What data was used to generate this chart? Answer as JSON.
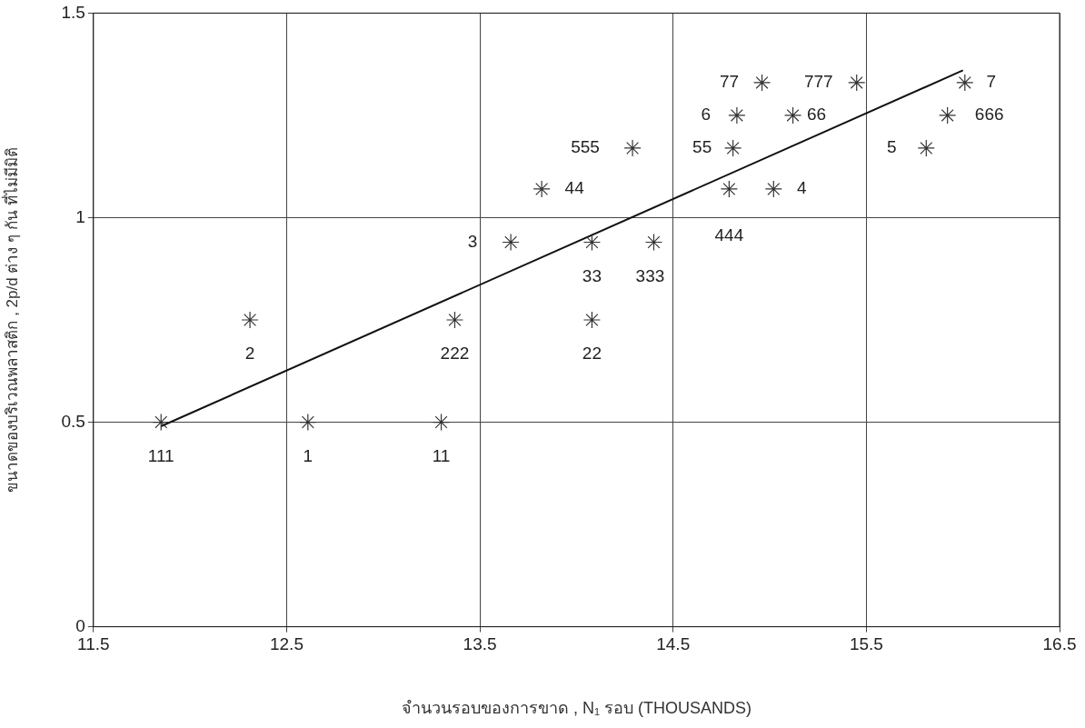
{
  "chart_data": {
    "type": "scatter",
    "xlabel": "จำนวนรอบของการขาด , N₁ รอบ (THOUSANDS)",
    "ylabel": "ขนาดของบริเวณพลาสติก , 2p/d ต่าง ๆ กัน ที่ไม่มีมิติ",
    "xlim": [
      11.5,
      16.5
    ],
    "xticks": [
      11.5,
      12.5,
      13.5,
      14.5,
      15.5,
      16.5
    ],
    "ylim": [
      0,
      1.5
    ],
    "yticks": [
      0,
      0.5,
      1,
      1.5
    ],
    "grid": true,
    "marker": "cross",
    "series": [
      {
        "type": "scatter",
        "color": "#333333",
        "x": [
          11.85,
          12.31,
          12.61,
          13.3,
          13.37,
          13.66,
          13.82,
          14.29,
          14.08,
          14.08,
          14.4,
          14.79,
          14.81,
          14.83,
          14.96,
          15.02,
          15.12,
          15.45,
          15.81,
          15.92,
          16.01
        ],
        "values": [
          0.5,
          0.75,
          0.5,
          0.5,
          0.75,
          0.94,
          1.07,
          1.17,
          0.94,
          0.75,
          0.94,
          1.07,
          1.17,
          1.25,
          1.33,
          1.07,
          1.25,
          1.33,
          1.17,
          1.25,
          1.33
        ]
      },
      {
        "type": "line",
        "color": "#111111",
        "marker": "none",
        "x": [
          11.85,
          16.0
        ],
        "values": [
          0.49,
          1.36
        ]
      }
    ],
    "annotations": [
      {
        "text": "111",
        "x": 11.85,
        "y": 0.5
      },
      {
        "text": "2",
        "x": 12.31,
        "y": 0.75
      },
      {
        "text": "1",
        "x": 12.61,
        "y": 0.5
      },
      {
        "text": "11",
        "x": 13.3,
        "y": 0.5
      },
      {
        "text": "222",
        "x": 13.37,
        "y": 0.75
      },
      {
        "text": "3",
        "x": 13.66,
        "y": 0.94
      },
      {
        "text": "44",
        "x": 13.82,
        "y": 1.07
      },
      {
        "text": "555",
        "x": 14.29,
        "y": 1.17
      },
      {
        "text": "33",
        "x": 14.08,
        "y": 0.94
      },
      {
        "text": "333",
        "x": 14.4,
        "y": 0.94
      },
      {
        "text": "22",
        "x": 14.08,
        "y": 0.75
      },
      {
        "text": "444",
        "x": 14.79,
        "y": 1.07
      },
      {
        "text": "55",
        "x": 14.81,
        "y": 1.17
      },
      {
        "text": "6",
        "x": 14.83,
        "y": 1.25
      },
      {
        "text": "77",
        "x": 14.96,
        "y": 1.33
      },
      {
        "text": "4",
        "x": 15.02,
        "y": 1.07
      },
      {
        "text": "66",
        "x": 15.12,
        "y": 1.25
      },
      {
        "text": "777",
        "x": 15.45,
        "y": 1.33
      },
      {
        "text": "5",
        "x": 15.81,
        "y": 1.17
      },
      {
        "text": "666",
        "x": 15.92,
        "y": 1.25
      },
      {
        "text": "7",
        "x": 16.01,
        "y": 1.33
      }
    ]
  }
}
